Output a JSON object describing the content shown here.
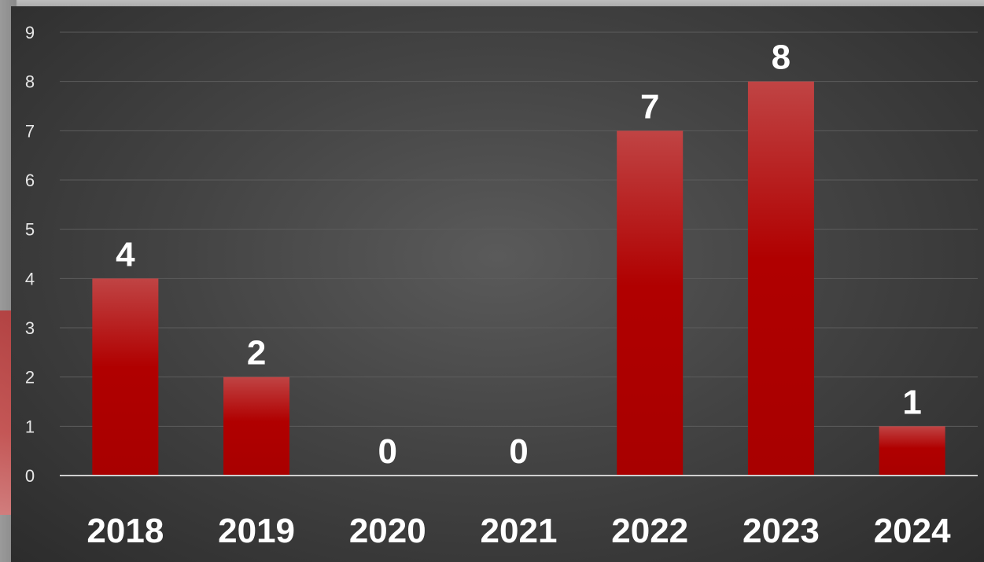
{
  "chart_data": {
    "type": "bar",
    "categories": [
      "2018",
      "2019",
      "2020",
      "2021",
      "2022",
      "2023",
      "2024"
    ],
    "values": [
      4,
      2,
      0,
      0,
      7,
      8,
      1
    ],
    "data_labels": [
      "4",
      "2",
      "0",
      "0",
      "7",
      "8",
      "1"
    ],
    "title": "",
    "xlabel": "",
    "ylabel": "",
    "ylim": [
      0,
      9
    ],
    "yticks": [
      "0",
      "1",
      "2",
      "3",
      "4",
      "5",
      "6",
      "7",
      "8",
      "9"
    ],
    "grid": true,
    "legend": "none",
    "colors": {
      "bar": "#b00000",
      "bar_top": "#c04444",
      "background": "#444444",
      "text": "#ffffff",
      "gridline": "#5c5c5c"
    }
  }
}
